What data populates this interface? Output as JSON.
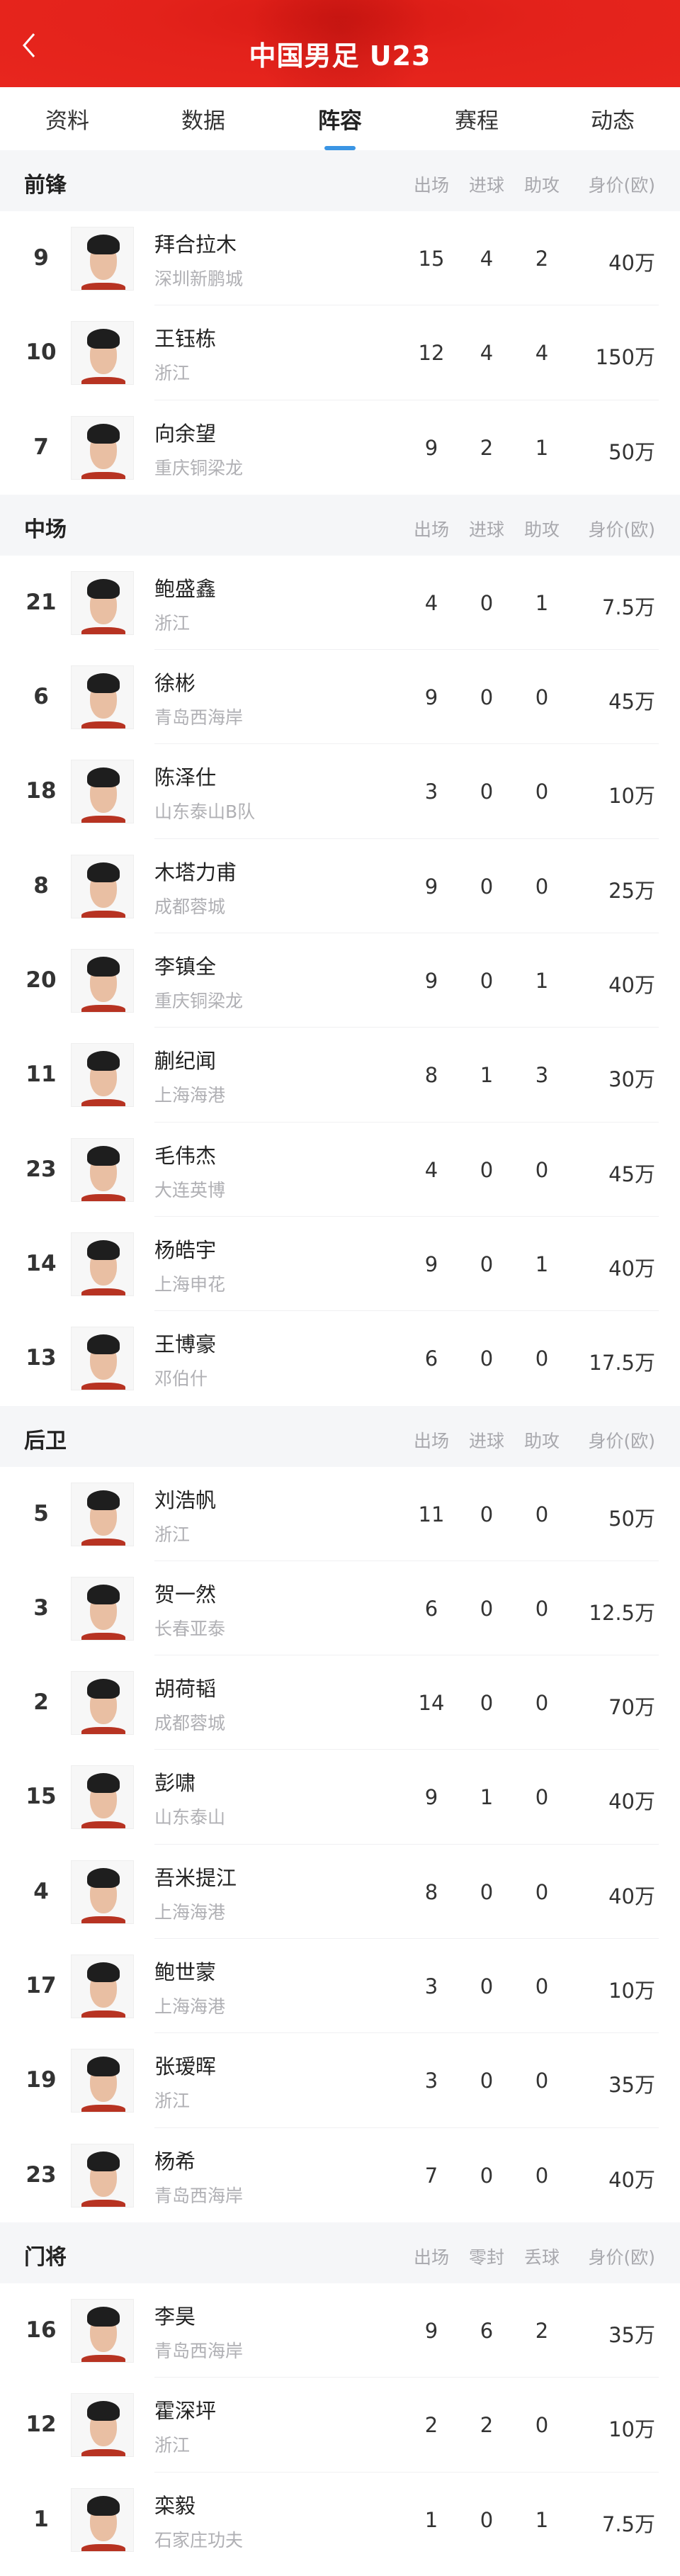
{
  "header": {
    "title": "中国男足 U23",
    "back_icon": "chevron-left-icon"
  },
  "tabs": [
    {
      "label": "资料"
    },
    {
      "label": "数据"
    },
    {
      "label": "阵容",
      "active": true
    },
    {
      "label": "赛程"
    },
    {
      "label": "动态"
    }
  ],
  "colors": {
    "header_red": "#e3221b",
    "tab_indicator": "#3a95e4"
  },
  "sections": [
    {
      "title": "前锋",
      "columns": [
        "出场",
        "进球",
        "助攻",
        "身价(欧)"
      ],
      "players": [
        {
          "number": "9",
          "name": "拜合拉木",
          "team": "深圳新鹏城",
          "stats": [
            "15",
            "4",
            "2"
          ],
          "value": "40万"
        },
        {
          "number": "10",
          "name": "王钰栋",
          "team": "浙江",
          "stats": [
            "12",
            "4",
            "4"
          ],
          "value": "150万"
        },
        {
          "number": "7",
          "name": "向余望",
          "team": "重庆铜梁龙",
          "stats": [
            "9",
            "2",
            "1"
          ],
          "value": "50万"
        }
      ]
    },
    {
      "title": "中场",
      "columns": [
        "出场",
        "进球",
        "助攻",
        "身价(欧)"
      ],
      "players": [
        {
          "number": "21",
          "name": "鲍盛鑫",
          "team": "浙江",
          "stats": [
            "4",
            "0",
            "1"
          ],
          "value": "7.5万"
        },
        {
          "number": "6",
          "name": "徐彬",
          "team": "青岛西海岸",
          "stats": [
            "9",
            "0",
            "0"
          ],
          "value": "45万"
        },
        {
          "number": "18",
          "name": "陈泽仕",
          "team": "山东泰山B队",
          "stats": [
            "3",
            "0",
            "0"
          ],
          "value": "10万"
        },
        {
          "number": "8",
          "name": "木塔力甫",
          "team": "成都蓉城",
          "stats": [
            "9",
            "0",
            "0"
          ],
          "value": "25万"
        },
        {
          "number": "20",
          "name": "李镇全",
          "team": "重庆铜梁龙",
          "stats": [
            "9",
            "0",
            "1"
          ],
          "value": "40万"
        },
        {
          "number": "11",
          "name": "蒯纪闻",
          "team": "上海海港",
          "stats": [
            "8",
            "1",
            "3"
          ],
          "value": "30万"
        },
        {
          "number": "23",
          "name": "毛伟杰",
          "team": "大连英博",
          "stats": [
            "4",
            "0",
            "0"
          ],
          "value": "45万"
        },
        {
          "number": "14",
          "name": "杨皓宇",
          "team": "上海申花",
          "stats": [
            "9",
            "0",
            "1"
          ],
          "value": "40万"
        },
        {
          "number": "13",
          "name": "王博豪",
          "team": "邓伯什",
          "stats": [
            "6",
            "0",
            "0"
          ],
          "value": "17.5万"
        }
      ]
    },
    {
      "title": "后卫",
      "columns": [
        "出场",
        "进球",
        "助攻",
        "身价(欧)"
      ],
      "players": [
        {
          "number": "5",
          "name": "刘浩帆",
          "team": "浙江",
          "stats": [
            "11",
            "0",
            "0"
          ],
          "value": "50万"
        },
        {
          "number": "3",
          "name": "贺一然",
          "team": "长春亚泰",
          "stats": [
            "6",
            "0",
            "0"
          ],
          "value": "12.5万"
        },
        {
          "number": "2",
          "name": "胡荷韬",
          "team": "成都蓉城",
          "stats": [
            "14",
            "0",
            "0"
          ],
          "value": "70万"
        },
        {
          "number": "15",
          "name": "彭啸",
          "team": "山东泰山",
          "stats": [
            "9",
            "1",
            "0"
          ],
          "value": "40万"
        },
        {
          "number": "4",
          "name": "吾米提江",
          "team": "上海海港",
          "stats": [
            "8",
            "0",
            "0"
          ],
          "value": "40万"
        },
        {
          "number": "17",
          "name": "鲍世蒙",
          "team": "上海海港",
          "stats": [
            "3",
            "0",
            "0"
          ],
          "value": "10万"
        },
        {
          "number": "19",
          "name": "张瑷晖",
          "team": "浙江",
          "stats": [
            "3",
            "0",
            "0"
          ],
          "value": "35万"
        },
        {
          "number": "23",
          "name": "杨希",
          "team": "青岛西海岸",
          "stats": [
            "7",
            "0",
            "0"
          ],
          "value": "40万"
        }
      ]
    },
    {
      "title": "门将",
      "columns": [
        "出场",
        "零封",
        "丢球",
        "身价(欧)"
      ],
      "players": [
        {
          "number": "16",
          "name": "李昊",
          "team": "青岛西海岸",
          "stats": [
            "9",
            "6",
            "2"
          ],
          "value": "35万"
        },
        {
          "number": "12",
          "name": "霍深坪",
          "team": "浙江",
          "stats": [
            "2",
            "2",
            "0"
          ],
          "value": "10万"
        },
        {
          "number": "1",
          "name": "栾毅",
          "team": "石家庄功夫",
          "stats": [
            "1",
            "0",
            "1"
          ],
          "value": "7.5万"
        }
      ]
    }
  ]
}
